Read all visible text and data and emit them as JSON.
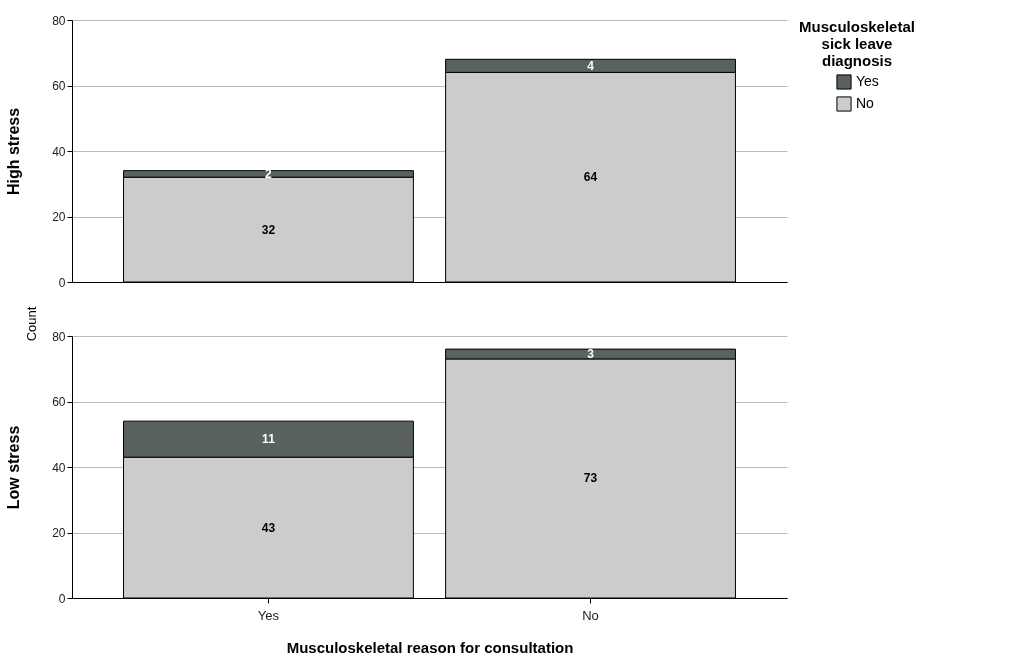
{
  "chart_data": [
    {
      "type": "bar",
      "stacked": true,
      "ylabel": "High stress",
      "categories": [
        "Yes",
        "No"
      ],
      "series": [
        {
          "name": "No",
          "color": "#cccccc",
          "values": [
            32,
            64
          ]
        },
        {
          "name": "Yes",
          "color": "#59625e",
          "values": [
            2,
            4
          ]
        }
      ],
      "ylim": [
        0,
        80
      ],
      "yticks": [
        0,
        20,
        40,
        60,
        80
      ],
      "grid": "y",
      "data_labels": true,
      "tick_labels": "y",
      "legend": "top right",
      "legend_title": "Musculoskeletal sick leave diagnosis"
    },
    {
      "type": "bar",
      "stacked": true,
      "ylabel": "Low stress",
      "xlabel": "Musculoskeletal reason for consultation",
      "categories": [
        "Yes",
        "No"
      ],
      "series": [
        {
          "name": "No",
          "color": "#cccccc",
          "values": [
            43,
            73
          ]
        },
        {
          "name": "Yes",
          "color": "#59625e",
          "values": [
            11,
            3
          ]
        }
      ],
      "ylim": [
        0,
        80
      ],
      "yticks": [
        0,
        20,
        40,
        60,
        80
      ],
      "grid": "y",
      "data_labels": true,
      "annotations": [
        "Count"
      ]
    }
  ]
}
